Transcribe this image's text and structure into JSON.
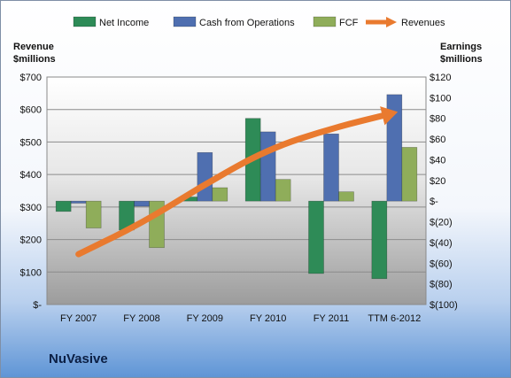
{
  "company": "NuVasive",
  "left_axis_title": [
    "Revenue",
    "$millions"
  ],
  "right_axis_title": [
    "Earnings",
    "$millions"
  ],
  "colors": {
    "net_income": "#2e8b57",
    "cash_from_operations": "#4f6fb0",
    "fcf": "#8fad5a",
    "revenues": "#e97a2f"
  },
  "chart_data": {
    "type": "bar",
    "categories": [
      "FY 2007",
      "FY 2008",
      "FY 2009",
      "FY 2010",
      "FY 2011",
      "TTM 6-2012"
    ],
    "series": [
      {
        "name": "Net Income",
        "axis": "right",
        "values": [
          -10,
          -28,
          4,
          80,
          -70,
          -75
        ]
      },
      {
        "name": "Cash from Operations",
        "axis": "right",
        "values": [
          -2,
          -5,
          47,
          67,
          65,
          103
        ]
      },
      {
        "name": "FCF",
        "axis": "right",
        "values": [
          -26,
          -45,
          13,
          21,
          9,
          52
        ]
      },
      {
        "name": "Revenues",
        "axis": "left",
        "type": "line",
        "values": [
          155,
          250,
          370,
          478,
          542,
          590
        ]
      }
    ],
    "left_axis": {
      "min": 0,
      "max": 700,
      "ticks": [
        "$-",
        "$100",
        "$200",
        "$300",
        "$400",
        "$500",
        "$600",
        "$700"
      ]
    },
    "right_axis": {
      "min": -100,
      "max": 120,
      "ticks": [
        "$(100)",
        "$(80)",
        "$(60)",
        "$(40)",
        "$(20)",
        "$-",
        "$20",
        "$40",
        "$60",
        "$80",
        "$100",
        "$120"
      ]
    },
    "legend_position": "top",
    "grid": true
  }
}
